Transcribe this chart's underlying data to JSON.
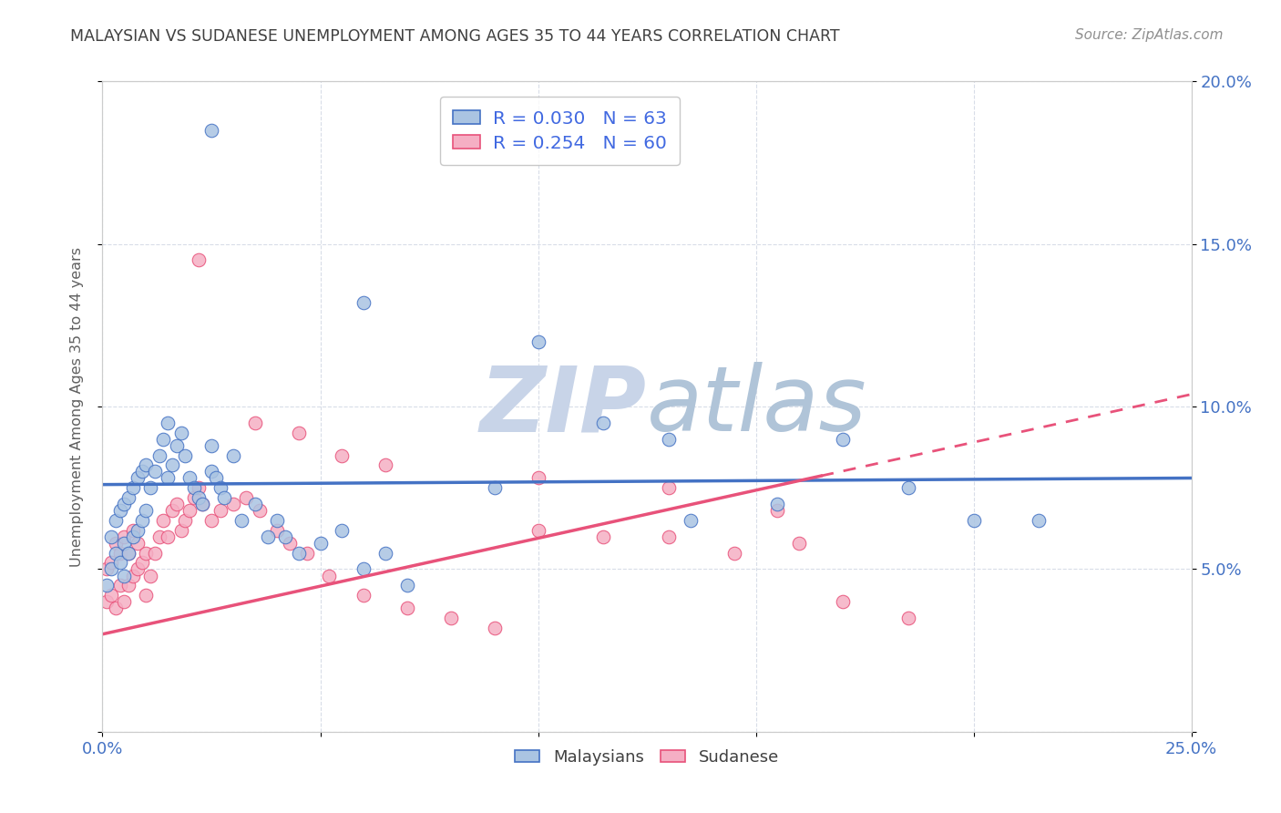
{
  "title": "MALAYSIAN VS SUDANESE UNEMPLOYMENT AMONG AGES 35 TO 44 YEARS CORRELATION CHART",
  "source": "Source: ZipAtlas.com",
  "ylabel": "Unemployment Among Ages 35 to 44 years",
  "xlim": [
    0.0,
    0.25
  ],
  "ylim": [
    0.0,
    0.2
  ],
  "R_malaysian": 0.03,
  "N_malaysian": 63,
  "R_sudanese": 0.254,
  "N_sudanese": 60,
  "color_malaysian": "#aac4e2",
  "color_sudanese": "#f5afc4",
  "line_color_malaysian": "#4472c4",
  "line_color_sudanese": "#e8527a",
  "background_color": "#ffffff",
  "grid_color": "#d8dde8",
  "title_color": "#404040",
  "legend_text_color": "#4169e1",
  "watermark_color_zip": "#c8d4e8",
  "watermark_color_atlas": "#b0c4d8",
  "mal_intercept": 0.076,
  "mal_slope": 0.008,
  "sud_intercept": 0.03,
  "sud_slope": 0.295,
  "malaysian_x": [
    0.001,
    0.002,
    0.002,
    0.003,
    0.003,
    0.004,
    0.004,
    0.005,
    0.005,
    0.005,
    0.006,
    0.006,
    0.007,
    0.007,
    0.008,
    0.008,
    0.009,
    0.009,
    0.01,
    0.01,
    0.011,
    0.012,
    0.013,
    0.014,
    0.015,
    0.015,
    0.016,
    0.017,
    0.018,
    0.019,
    0.02,
    0.021,
    0.022,
    0.023,
    0.025,
    0.025,
    0.026,
    0.027,
    0.028,
    0.03,
    0.032,
    0.035,
    0.038,
    0.04,
    0.042,
    0.045,
    0.05,
    0.055,
    0.06,
    0.065,
    0.07,
    0.09,
    0.1,
    0.115,
    0.135,
    0.155,
    0.17,
    0.185,
    0.2,
    0.215,
    0.025,
    0.06,
    0.13
  ],
  "malaysian_y": [
    0.045,
    0.05,
    0.06,
    0.055,
    0.065,
    0.052,
    0.068,
    0.048,
    0.058,
    0.07,
    0.055,
    0.072,
    0.06,
    0.075,
    0.062,
    0.078,
    0.065,
    0.08,
    0.068,
    0.082,
    0.075,
    0.08,
    0.085,
    0.09,
    0.078,
    0.095,
    0.082,
    0.088,
    0.092,
    0.085,
    0.078,
    0.075,
    0.072,
    0.07,
    0.08,
    0.088,
    0.078,
    0.075,
    0.072,
    0.085,
    0.065,
    0.07,
    0.06,
    0.065,
    0.06,
    0.055,
    0.058,
    0.062,
    0.05,
    0.055,
    0.045,
    0.075,
    0.12,
    0.095,
    0.065,
    0.07,
    0.09,
    0.075,
    0.065,
    0.065,
    0.185,
    0.132,
    0.09
  ],
  "sudanese_x": [
    0.001,
    0.001,
    0.002,
    0.002,
    0.003,
    0.003,
    0.004,
    0.004,
    0.005,
    0.005,
    0.006,
    0.006,
    0.007,
    0.007,
    0.008,
    0.008,
    0.009,
    0.01,
    0.01,
    0.011,
    0.012,
    0.013,
    0.014,
    0.015,
    0.016,
    0.017,
    0.018,
    0.019,
    0.02,
    0.021,
    0.022,
    0.023,
    0.025,
    0.027,
    0.03,
    0.033,
    0.036,
    0.04,
    0.043,
    0.047,
    0.052,
    0.06,
    0.07,
    0.08,
    0.09,
    0.1,
    0.115,
    0.13,
    0.145,
    0.16,
    0.022,
    0.035,
    0.045,
    0.055,
    0.065,
    0.1,
    0.13,
    0.155,
    0.17,
    0.185
  ],
  "sudanese_y": [
    0.04,
    0.05,
    0.042,
    0.052,
    0.038,
    0.058,
    0.045,
    0.055,
    0.04,
    0.06,
    0.045,
    0.055,
    0.048,
    0.062,
    0.05,
    0.058,
    0.052,
    0.042,
    0.055,
    0.048,
    0.055,
    0.06,
    0.065,
    0.06,
    0.068,
    0.07,
    0.062,
    0.065,
    0.068,
    0.072,
    0.075,
    0.07,
    0.065,
    0.068,
    0.07,
    0.072,
    0.068,
    0.062,
    0.058,
    0.055,
    0.048,
    0.042,
    0.038,
    0.035,
    0.032,
    0.062,
    0.06,
    0.06,
    0.055,
    0.058,
    0.145,
    0.095,
    0.092,
    0.085,
    0.082,
    0.078,
    0.075,
    0.068,
    0.04,
    0.035
  ]
}
